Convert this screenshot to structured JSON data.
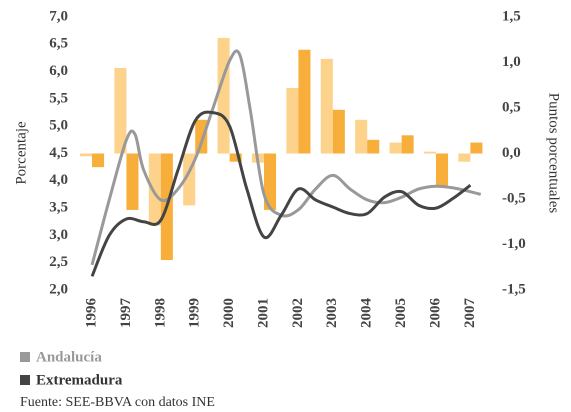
{
  "chart_data": {
    "type": "line",
    "ylabel": "Porcentaje",
    "y2label": "Puntos porcentuales",
    "source": "Fuente: SEE-BBVA con datos INE",
    "xlim": [
      1995.65,
      2007.57
    ],
    "xticks": [
      1996,
      1997,
      1998,
      1999,
      2000,
      2001,
      2002,
      2003,
      2004,
      2005,
      2006,
      2007
    ],
    "ylim": [
      2.0,
      7.0
    ],
    "yticks": [
      {
        "value": 2.0,
        "label": "2,0"
      },
      {
        "value": 2.5,
        "label": "2,5"
      },
      {
        "value": 3.0,
        "label": "3,0"
      },
      {
        "value": 3.5,
        "label": "3,5"
      },
      {
        "value": 4.0,
        "label": "4,0"
      },
      {
        "value": 4.5,
        "label": "4,5"
      },
      {
        "value": 5.0,
        "label": "5,0"
      },
      {
        "value": 5.5,
        "label": "5,5"
      },
      {
        "value": 6.0,
        "label": "6,0"
      },
      {
        "value": 6.5,
        "label": "6,5"
      },
      {
        "value": 7.0,
        "label": "7,0"
      }
    ],
    "y2lim": [
      -1.5,
      1.5
    ],
    "y2ticks": [
      {
        "value": -1.5,
        "label": "-1,5"
      },
      {
        "value": -1.0,
        "label": "-1,0"
      },
      {
        "value": -0.5,
        "label": "-0,5"
      },
      {
        "value": 0.0,
        "label": "0,0"
      },
      {
        "value": 0.5,
        "label": "0,5"
      },
      {
        "value": 1.0,
        "label": "1,0"
      },
      {
        "value": 1.5,
        "label": "1,5"
      }
    ],
    "series": [
      {
        "name": "Andalucía",
        "color": "#999999",
        "x": [
          1996,
          1996.5,
          1997,
          1997.25,
          1997.5,
          1998,
          1998.5,
          1999,
          1999.5,
          2000,
          2000.3,
          2000.6,
          2001,
          2001.5,
          2002,
          2002.5,
          2003,
          2003.5,
          2004,
          2004.5,
          2005,
          2005.5,
          2006,
          2006.5,
          2007,
          2007.3
        ],
        "values": [
          2.46,
          3.65,
          4.75,
          4.85,
          4.2,
          3.65,
          3.85,
          4.4,
          5.3,
          6.2,
          6.3,
          5.3,
          3.75,
          3.37,
          3.47,
          3.85,
          4.1,
          3.85,
          3.65,
          3.6,
          3.7,
          3.85,
          3.9,
          3.87,
          3.8,
          3.75
        ]
      },
      {
        "name": "Extremadura",
        "color": "#444444",
        "x": [
          1996,
          1996.5,
          1997,
          1997.5,
          1998,
          1998.5,
          1999,
          1999.5,
          2000,
          2000.5,
          2001,
          2001.5,
          2002,
          2002.5,
          2003,
          2003.5,
          2004,
          2004.5,
          2005,
          2005.5,
          2006,
          2006.5,
          2007
        ],
        "values": [
          2.25,
          3.0,
          3.3,
          3.25,
          3.28,
          4.2,
          5.1,
          5.25,
          5.0,
          3.85,
          2.97,
          3.37,
          3.85,
          3.65,
          3.52,
          3.4,
          3.4,
          3.7,
          3.8,
          3.55,
          3.5,
          3.68,
          3.92
        ]
      }
    ],
    "bars": [
      {
        "color": "#fdd28a",
        "axis": "y2",
        "values": [
          -0.03,
          0.94,
          -0.79,
          -0.57,
          1.27,
          -0.1,
          0.72,
          1.04,
          0.37,
          0.12,
          0.02,
          -0.09
        ]
      },
      {
        "color": "#f7ae3a",
        "axis": "y2",
        "values": [
          -0.15,
          -0.62,
          -1.17,
          0.37,
          -0.09,
          -0.62,
          1.14,
          0.48,
          0.15,
          0.2,
          -0.37,
          0.12
        ]
      }
    ]
  }
}
